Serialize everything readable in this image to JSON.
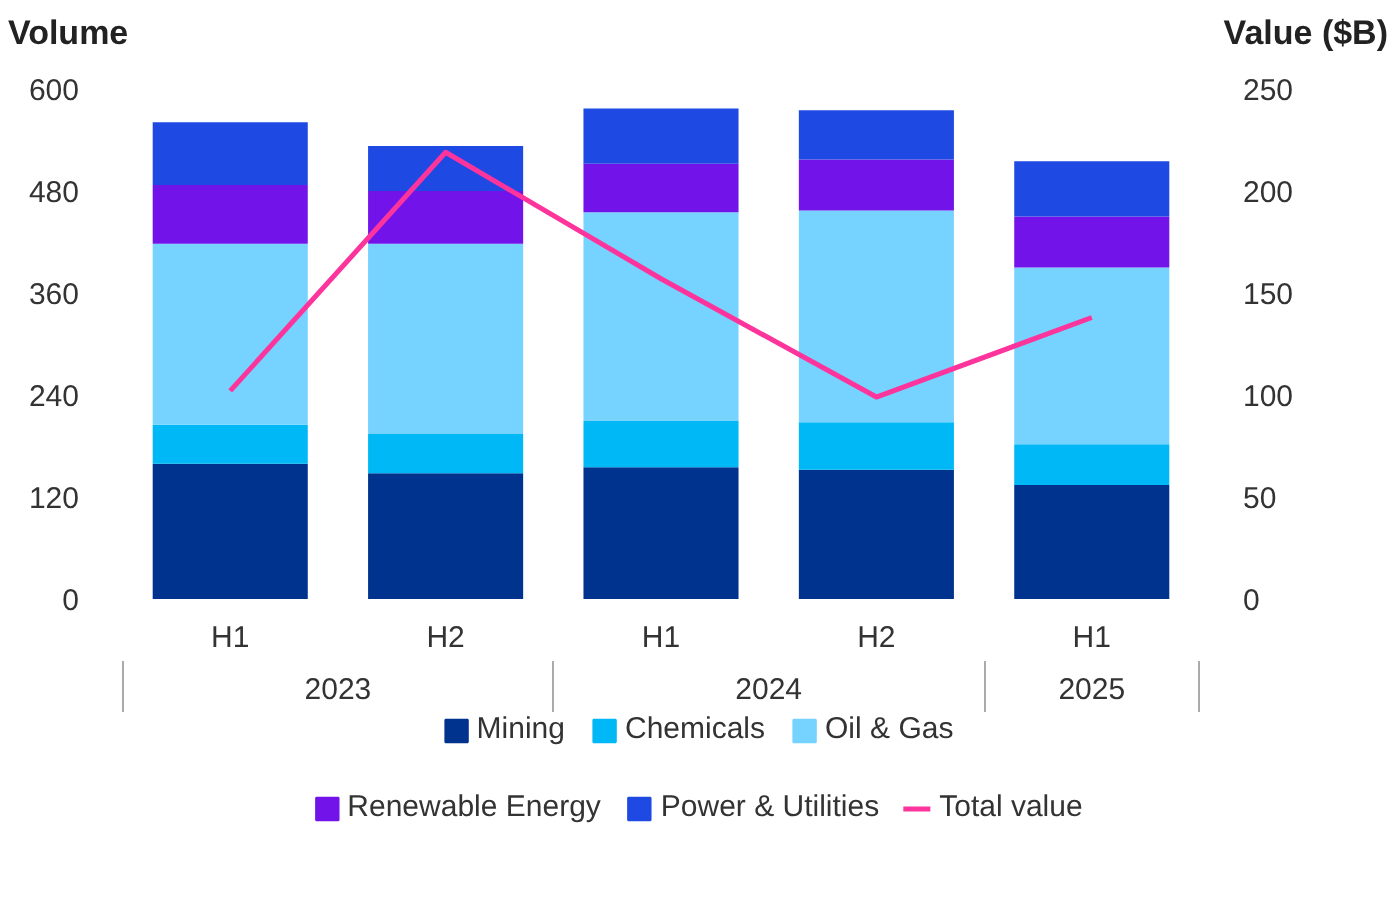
{
  "chart_data": {
    "type": "bar",
    "stacked": true,
    "ylabel": "Volume",
    "y2label": "Value ($B)",
    "categories": [
      "H1",
      "H2",
      "H1",
      "H2",
      "H1"
    ],
    "series": [
      {
        "name": "Mining",
        "color": "#00338d",
        "values": [
          159,
          148,
          155,
          152,
          134
        ]
      },
      {
        "name": "Chemicals",
        "color": "#00b8f5",
        "values": [
          46,
          46,
          55,
          56,
          48
        ]
      },
      {
        "name": "Oil & Gas",
        "color": "#76d2ff",
        "values": [
          213,
          224,
          245,
          249,
          208
        ]
      },
      {
        "name": "Renewable Energy",
        "color": "#7213ea",
        "values": [
          69,
          62,
          57,
          60,
          60
        ]
      },
      {
        "name": "Power & Utilities",
        "color": "#1e49e2",
        "values": [
          74,
          53,
          65,
          58,
          65
        ]
      },
      {
        "name": "Total value",
        "type": "line",
        "axis": "y2",
        "color": "#fd349c",
        "values": [
          102,
          219,
          157,
          99,
          138
        ]
      }
    ],
    "annotations": [
      "2023",
      "2024",
      "2025"
    ],
    "ylim": [
      0,
      600
    ],
    "yticks": [
      0,
      120,
      240,
      360,
      480,
      600
    ],
    "y2lim": [
      0,
      250
    ],
    "y2ticks": [
      0,
      50,
      100,
      150,
      200,
      250
    ],
    "grid": false,
    "legend": "bottom",
    "marker": "none"
  }
}
